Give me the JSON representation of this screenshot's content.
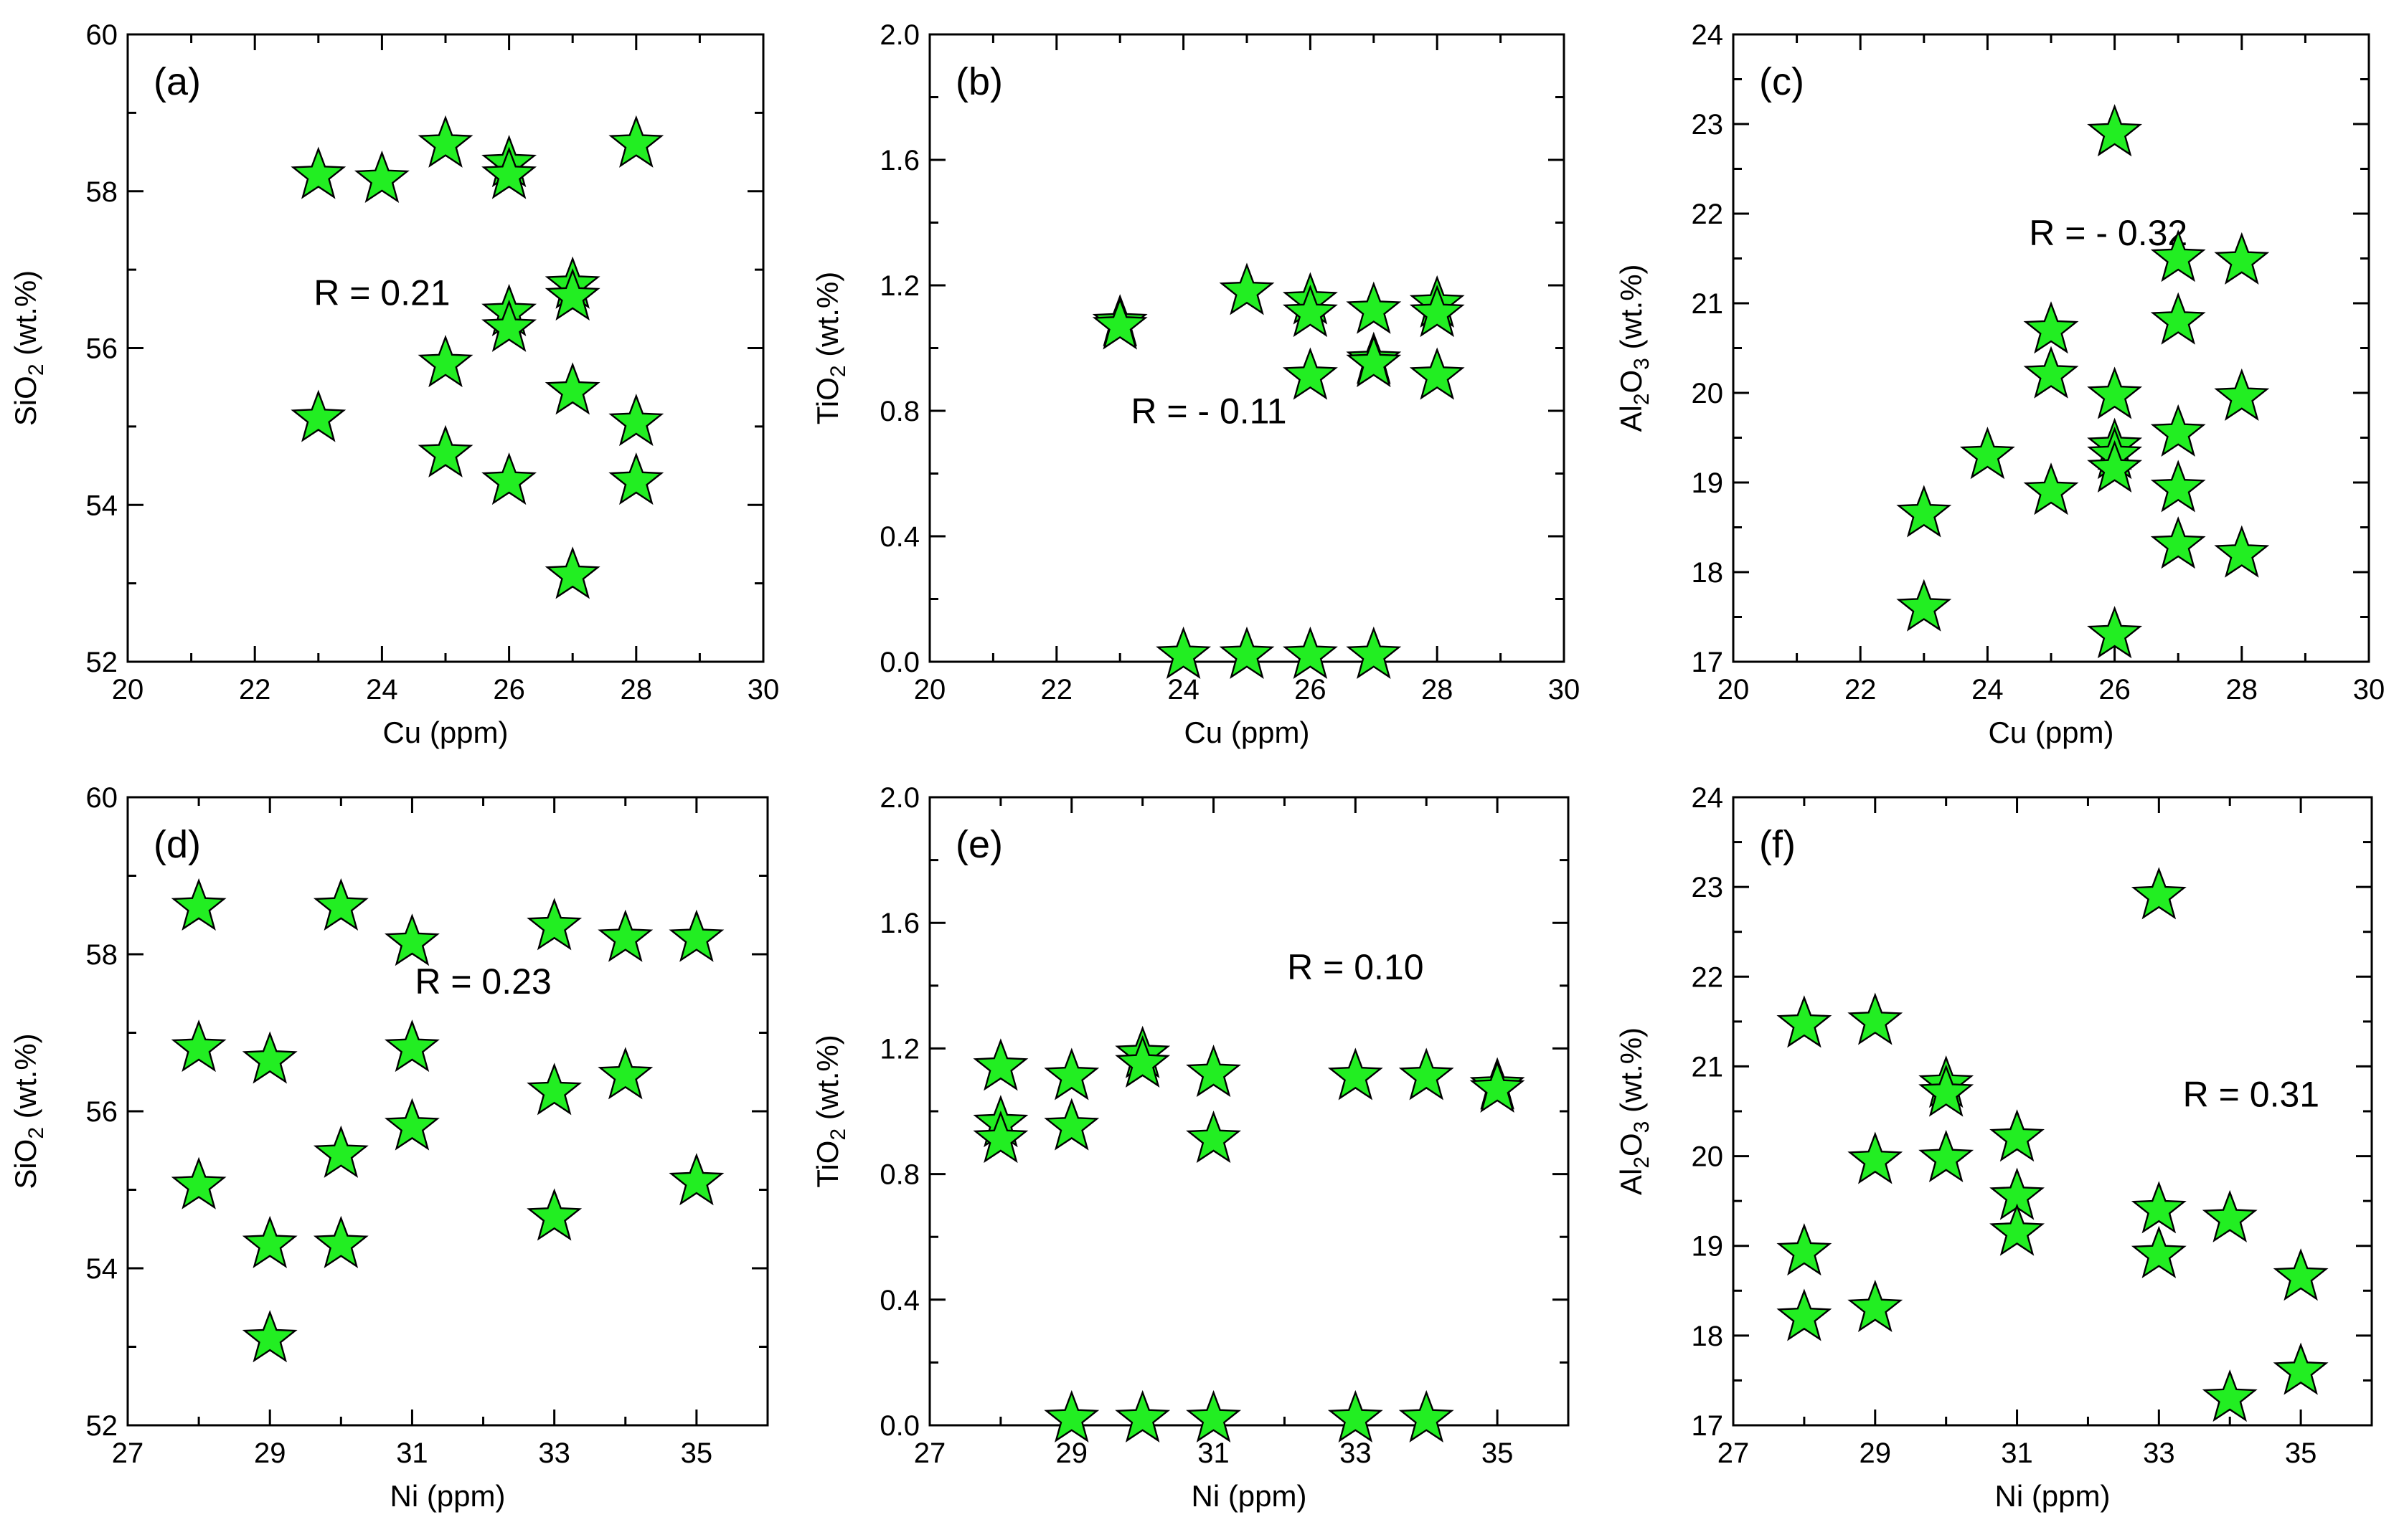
{
  "marker_color": "#22ee22",
  "marker_shape": "star",
  "chart_data": [
    {
      "id": "a",
      "type": "scatter",
      "panel_label": "(a)",
      "annotation": "R = 0.21",
      "xlabel": "Cu (ppm)",
      "ylabel": "SiO",
      "ylabel_sub": "2",
      "ylabel_post": " (wt.%)",
      "xlim": [
        20,
        30
      ],
      "ylim": [
        52,
        60
      ],
      "xticks": [
        20,
        22,
        24,
        26,
        28,
        30
      ],
      "yticks": [
        52,
        54,
        56,
        58,
        60
      ],
      "x": [
        23,
        23,
        24,
        25,
        25,
        25,
        26,
        26,
        26,
        26,
        26,
        27,
        27,
        27,
        27,
        28,
        28,
        28
      ],
      "y": [
        58.2,
        55.1,
        58.15,
        58.6,
        55.8,
        54.65,
        58.35,
        58.2,
        56.45,
        56.25,
        54.3,
        56.8,
        56.65,
        55.45,
        53.1,
        58.6,
        55.05,
        54.3
      ]
    },
    {
      "id": "b",
      "type": "scatter",
      "panel_label": "(b)",
      "annotation": "R = - 0.11",
      "xlabel": "Cu (ppm)",
      "ylabel": "TiO",
      "ylabel_sub": "2",
      "ylabel_post": " (wt.%)",
      "xlim": [
        20,
        30
      ],
      "ylim": [
        0,
        2
      ],
      "xticks": [
        20,
        22,
        24,
        26,
        28,
        30
      ],
      "yticks": [
        "0.0",
        "0.4",
        "0.8",
        "1.2",
        "1.6",
        "2.0"
      ],
      "x": [
        23,
        23,
        24,
        25,
        25,
        26,
        26,
        26,
        26,
        27,
        27,
        27,
        27,
        28,
        28,
        28
      ],
      "y": [
        1.08,
        1.07,
        0.02,
        1.18,
        0.02,
        1.15,
        1.11,
        0.91,
        0.02,
        1.12,
        0.96,
        0.95,
        0.02,
        1.14,
        1.11,
        0.91
      ]
    },
    {
      "id": "c",
      "type": "scatter",
      "panel_label": "(c)",
      "annotation": "R = - 0.32",
      "xlabel": "Cu (ppm)",
      "ylabel": "Al",
      "ylabel_sub": "2",
      "ylabel_mid": "O",
      "ylabel_sub2": "3",
      "ylabel_post": " (wt.%)",
      "xlim": [
        20,
        30
      ],
      "ylim": [
        17,
        24
      ],
      "xticks": [
        20,
        22,
        24,
        26,
        28,
        30
      ],
      "yticks": [
        17,
        18,
        19,
        20,
        21,
        22,
        23,
        24
      ],
      "x": [
        23,
        23,
        24,
        25,
        25,
        25,
        26,
        26,
        26,
        26,
        26,
        26,
        27,
        27,
        27,
        27,
        27,
        28,
        28,
        28
      ],
      "y": [
        18.65,
        17.6,
        19.3,
        20.7,
        20.2,
        18.9,
        22.9,
        19.97,
        19.4,
        19.3,
        19.15,
        17.3,
        21.5,
        20.8,
        19.55,
        18.93,
        18.3,
        21.47,
        19.95,
        18.2
      ]
    },
    {
      "id": "d",
      "type": "scatter",
      "panel_label": "(d)",
      "annotation": "R = 0.23",
      "xlabel": "Ni (ppm)",
      "ylabel": "SiO",
      "ylabel_sub": "2",
      "ylabel_post": " (wt.%)",
      "xlim": [
        27,
        36
      ],
      "ylim": [
        52,
        60
      ],
      "xticks": [
        27,
        29,
        31,
        33,
        35
      ],
      "xminor": [
        28,
        30,
        32,
        34,
        36
      ],
      "yticks": [
        52,
        54,
        56,
        58,
        60
      ],
      "x": [
        28,
        28,
        28,
        29,
        29,
        29,
        30,
        30,
        30,
        31,
        31,
        31,
        33,
        33,
        33,
        34,
        34,
        35,
        35
      ],
      "y": [
        58.6,
        56.8,
        55.05,
        56.65,
        54.3,
        53.1,
        58.6,
        55.45,
        54.3,
        58.15,
        56.8,
        55.8,
        58.35,
        56.25,
        54.65,
        58.2,
        56.45,
        58.2,
        55.1
      ]
    },
    {
      "id": "e",
      "type": "scatter",
      "panel_label": "(e)",
      "annotation": "R = 0.10",
      "xlabel": "Ni (ppm)",
      "ylabel": "TiO",
      "ylabel_sub": "2",
      "ylabel_post": " (wt.%)",
      "xlim": [
        27,
        36
      ],
      "ylim": [
        0,
        2
      ],
      "xticks": [
        27,
        29,
        31,
        33,
        35
      ],
      "xminor": [
        28,
        30,
        32,
        34,
        36
      ],
      "yticks": [
        "0.0",
        "0.4",
        "0.8",
        "1.2",
        "1.6",
        "2.0"
      ],
      "x": [
        28,
        28,
        28,
        29,
        29,
        29,
        30,
        30,
        30,
        31,
        31,
        31,
        33,
        33,
        34,
        34,
        35,
        35
      ],
      "y": [
        1.14,
        0.96,
        0.91,
        1.11,
        0.95,
        0.02,
        1.18,
        1.15,
        0.02,
        1.12,
        0.91,
        0.02,
        1.11,
        0.02,
        1.11,
        0.02,
        1.08,
        1.07
      ]
    },
    {
      "id": "f",
      "type": "scatter",
      "panel_label": "(f)",
      "annotation": "R = 0.31",
      "xlabel": "Ni (ppm)",
      "ylabel": "Al",
      "ylabel_sub": "2",
      "ylabel_mid": "O",
      "ylabel_sub2": "3",
      "ylabel_post": " (wt.%)",
      "xlim": [
        27,
        36
      ],
      "ylim": [
        17,
        24
      ],
      "xticks": [
        27,
        29,
        31,
        33,
        35
      ],
      "xminor": [
        28,
        30,
        32,
        34,
        36
      ],
      "yticks": [
        17,
        18,
        19,
        20,
        21,
        22,
        23,
        24
      ],
      "x": [
        28,
        28,
        28,
        29,
        29,
        29,
        30,
        30,
        30,
        31,
        31,
        31,
        33,
        33,
        33,
        34,
        34,
        35,
        35
      ],
      "y": [
        21.47,
        18.93,
        18.2,
        21.5,
        19.95,
        18.3,
        20.8,
        20.7,
        19.97,
        20.2,
        19.55,
        19.15,
        22.9,
        19.4,
        18.9,
        19.3,
        17.3,
        18.65,
        17.6
      ]
    }
  ]
}
